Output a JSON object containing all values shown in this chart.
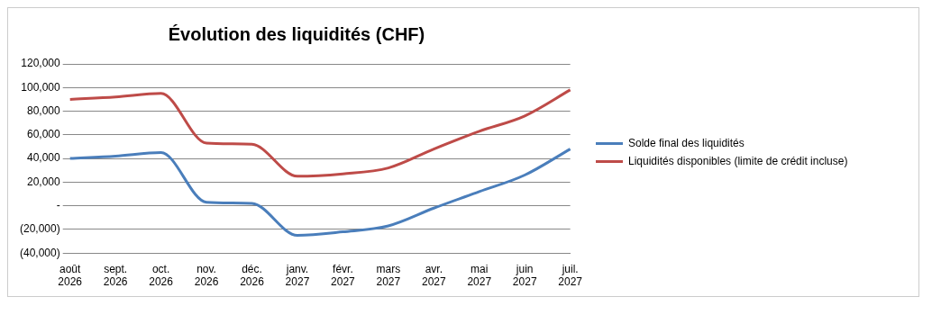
{
  "chart_data": {
    "type": "line",
    "title": "Évolution des liquidités (CHF)",
    "categories": [
      "août 2026",
      "sept. 2026",
      "oct. 2026",
      "nov. 2026",
      "déc. 2026",
      "janv. 2027",
      "févr. 2027",
      "mars 2027",
      "avr. 2027",
      "mai 2027",
      "juin 2027",
      "juil. 2027"
    ],
    "series": [
      {
        "name": "Solde final des liquidités",
        "color": "#4a7ebb",
        "values": [
          40000,
          42000,
          45000,
          3000,
          2000,
          -25000,
          -22000,
          -17000,
          -2000,
          12000,
          26000,
          48000
        ]
      },
      {
        "name": "Liquidités disponibles (limite de crédit incluse)",
        "color": "#be4b48",
        "values": [
          90000,
          92000,
          95000,
          53000,
          52000,
          25000,
          27000,
          32000,
          48000,
          63000,
          76000,
          98000
        ]
      }
    ],
    "ylim": [
      -40000,
      120000
    ],
    "yticks": [
      {
        "value": -40000,
        "label": "(40,000)"
      },
      {
        "value": -20000,
        "label": "(20,000)"
      },
      {
        "value": 0,
        "label": "-"
      },
      {
        "value": 20000,
        "label": "20,000"
      },
      {
        "value": 40000,
        "label": "40,000"
      },
      {
        "value": 60000,
        "label": "60,000"
      },
      {
        "value": 80000,
        "label": "80,000"
      },
      {
        "value": 100000,
        "label": "100,000"
      },
      {
        "value": 120000,
        "label": "120,000"
      }
    ],
    "grid": "y",
    "legend": "right",
    "marker": "none",
    "line_style": "solid"
  }
}
